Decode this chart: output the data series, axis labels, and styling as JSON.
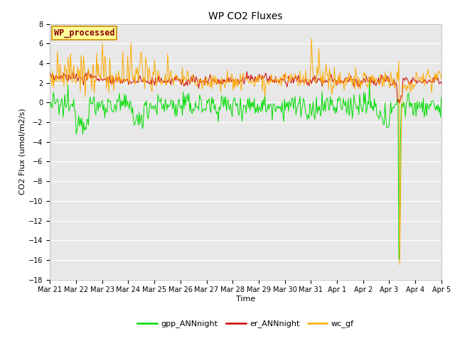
{
  "title": "WP CO2 Fluxes",
  "xlabel": "Time",
  "ylabel": "CO2 Flux (umol/m2/s)",
  "ylim": [
    -18,
    8
  ],
  "yticks": [
    -18,
    -16,
    -14,
    -12,
    -10,
    -8,
    -6,
    -4,
    -2,
    0,
    2,
    4,
    6,
    8
  ],
  "x_tick_labels": [
    "Mar 21",
    "Mar 22",
    "Mar 23",
    "Mar 24",
    "Mar 25",
    "Mar 26",
    "Mar 27",
    "Mar 28",
    "Mar 29",
    "Mar 30",
    "Mar 31",
    "Apr 1",
    "Apr 2",
    "Apr 3",
    "Apr 4",
    "Apr 5"
  ],
  "n_points": 480,
  "green_color": "#00dd00",
  "red_color": "#cc0000",
  "orange_color": "#ffaa00",
  "bg_color": "#e8e8e8",
  "legend_label": "WP_processed",
  "legend_label_color": "#8b0000",
  "legend_bg": "#ffff99",
  "legend_border": "#cc8800",
  "series_labels": [
    "gpp_ANNnight",
    "er_ANNnight",
    "wc_gf"
  ],
  "series_colors": [
    "#00dd00",
    "#cc0000",
    "#ffaa00"
  ],
  "title_fontsize": 10,
  "axis_label_fontsize": 8,
  "tick_fontsize": 7,
  "legend_fontsize": 8
}
